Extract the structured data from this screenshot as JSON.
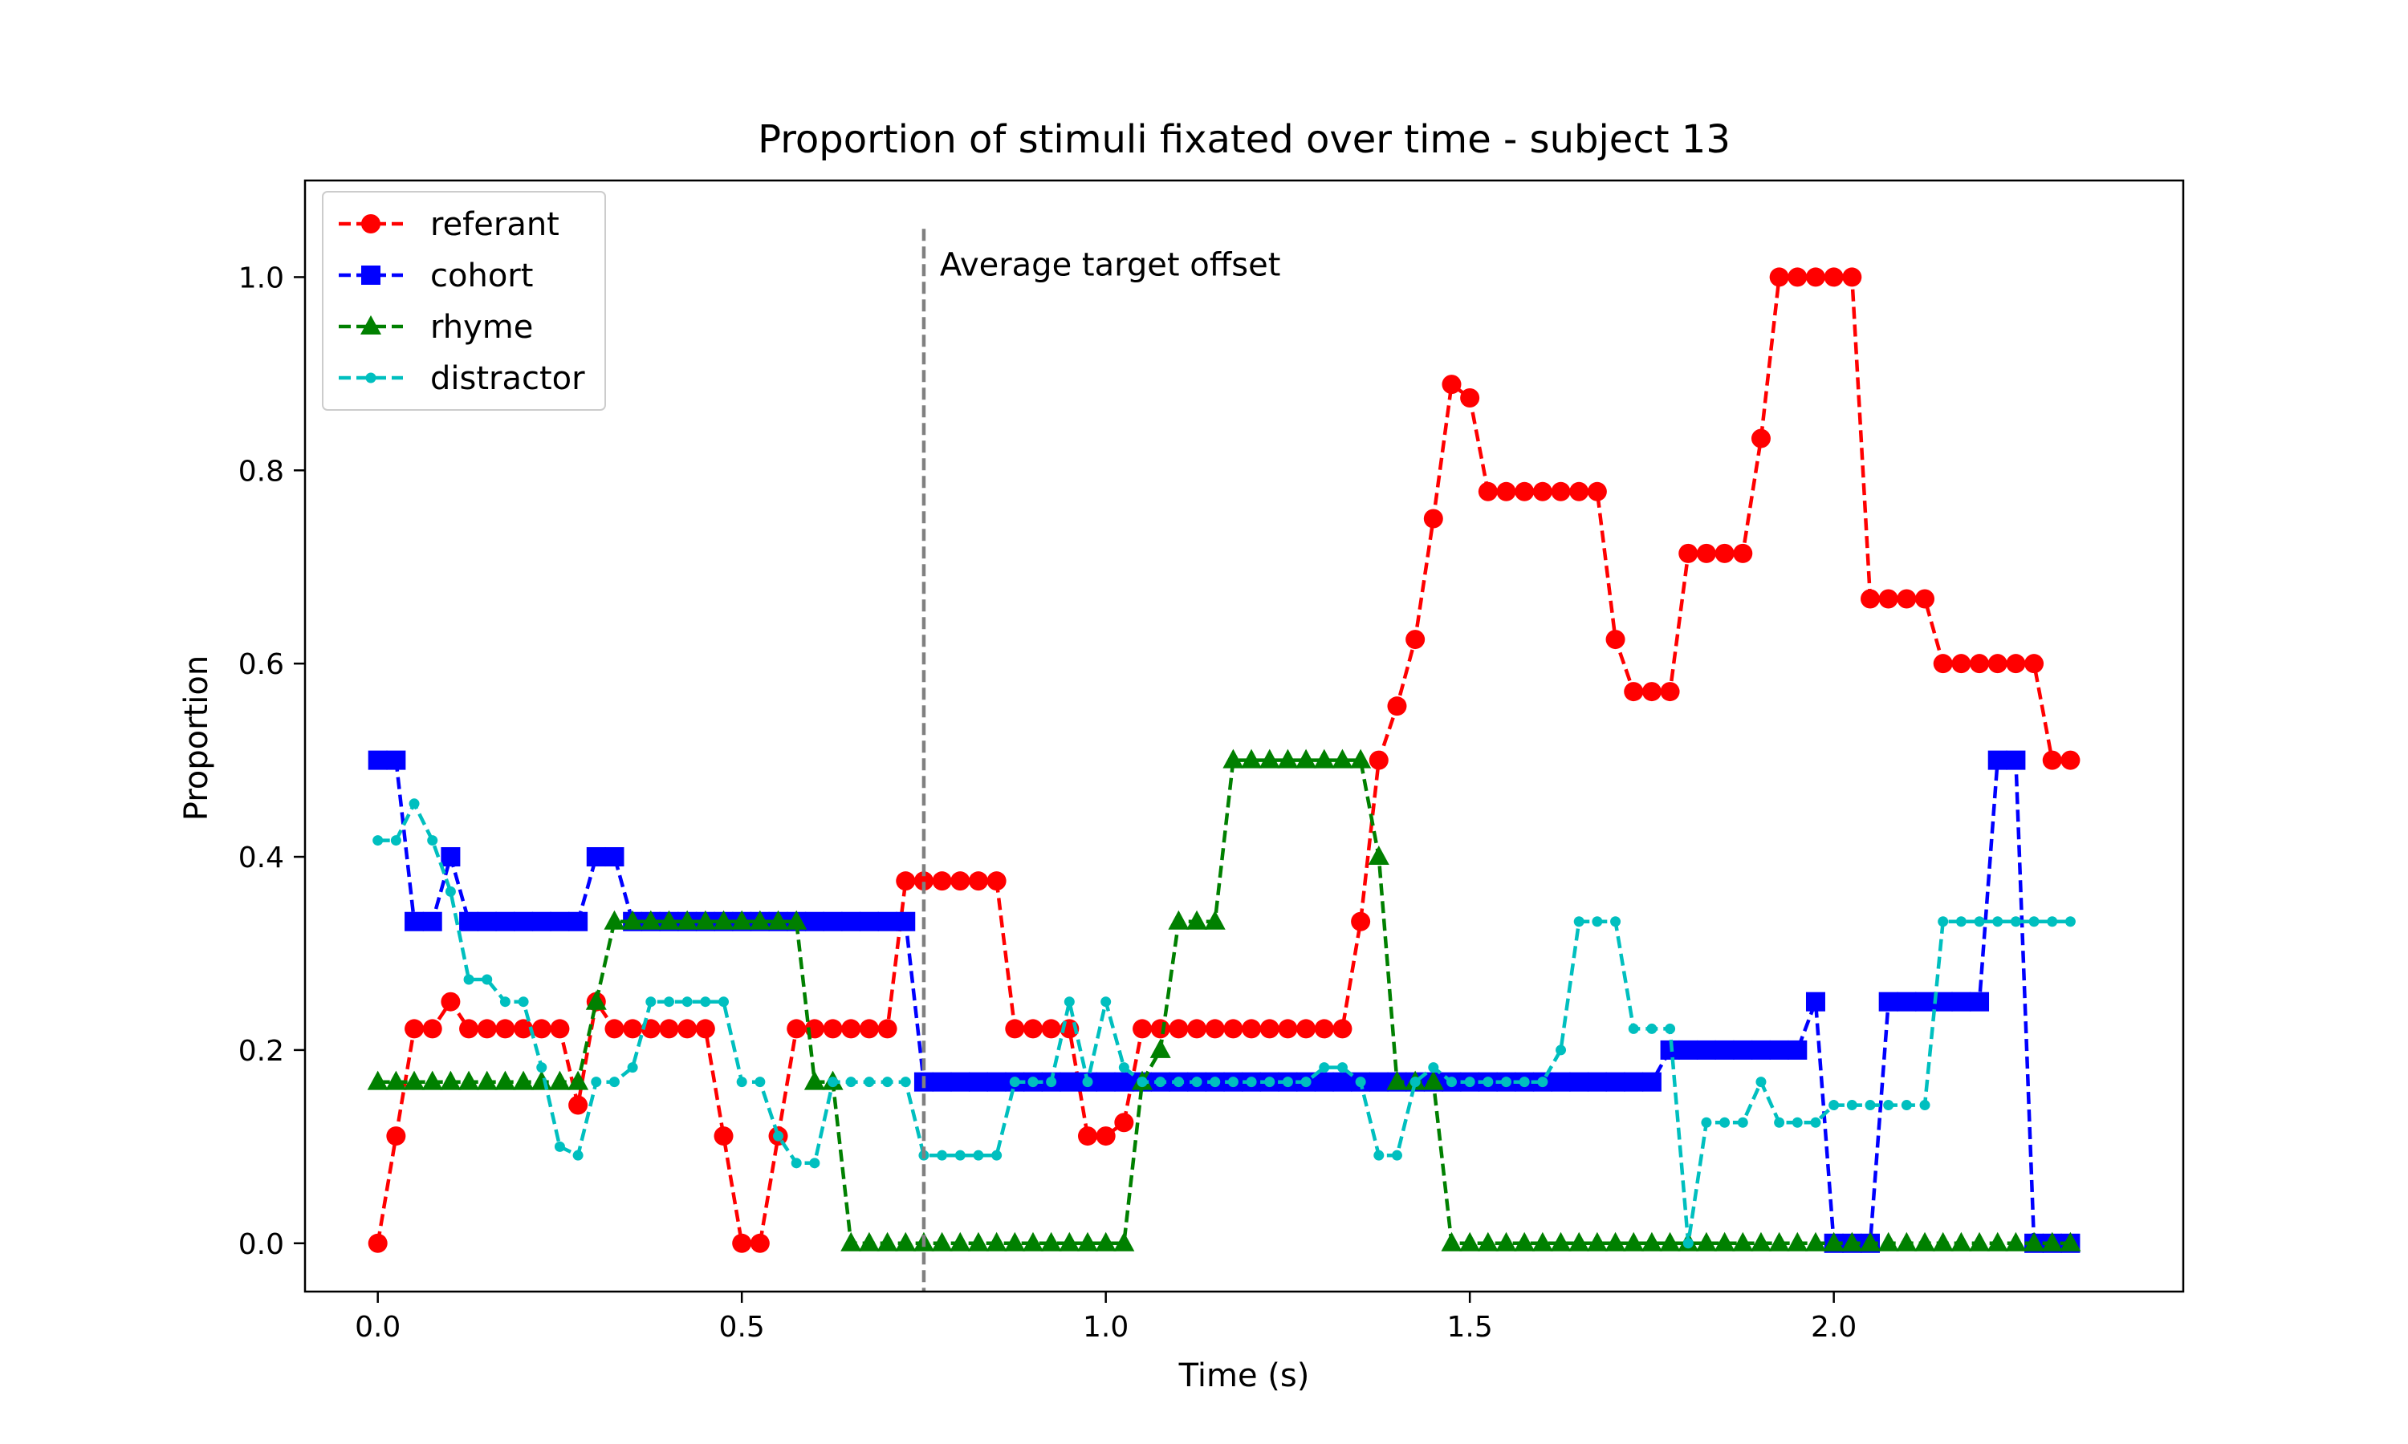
{
  "chart_data": {
    "type": "line",
    "title": "Proportion of stimuli fixated over time - subject 13",
    "xlabel": "Time (s)",
    "ylabel": "Proportion",
    "xlim": [
      -0.1,
      2.48
    ],
    "ylim": [
      -0.05,
      1.1
    ],
    "xticks": [
      0.0,
      0.5,
      1.0,
      1.5,
      2.0
    ],
    "xtick_labels": [
      "0.0",
      "0.5",
      "1.0",
      "1.5",
      "2.0"
    ],
    "yticks": [
      0.0,
      0.2,
      0.4,
      0.6,
      0.8,
      1.0
    ],
    "ytick_labels": [
      "0.0",
      "0.2",
      "0.4",
      "0.6",
      "0.8",
      "1.0"
    ],
    "grid": false,
    "legend_position": "top-left",
    "vline": {
      "x": 0.75,
      "ymax": 1.05,
      "color": "#808080",
      "label": "Average target offset"
    },
    "x_start": 0.0,
    "x_step": 0.025,
    "series": [
      {
        "name": "referant",
        "color": "#ff0000",
        "marker": "circle",
        "values": [
          0.0,
          0.111,
          0.222,
          0.222,
          0.25,
          0.222,
          0.222,
          0.222,
          0.222,
          0.222,
          0.222,
          0.143,
          0.25,
          0.222,
          0.222,
          0.222,
          0.222,
          0.222,
          0.222,
          0.111,
          0.0,
          0.0,
          0.111,
          0.222,
          0.222,
          0.222,
          0.222,
          0.222,
          0.222,
          0.375,
          0.375,
          0.375,
          0.375,
          0.375,
          0.375,
          0.222,
          0.222,
          0.222,
          0.222,
          0.111,
          0.111,
          0.125,
          0.222,
          0.222,
          0.222,
          0.222,
          0.222,
          0.222,
          0.222,
          0.222,
          0.222,
          0.222,
          0.222,
          0.222,
          0.333,
          0.5,
          0.556,
          0.625,
          0.75,
          0.889,
          0.875,
          0.778,
          0.778,
          0.778,
          0.778,
          0.778,
          0.778,
          0.778,
          0.625,
          0.571,
          0.571,
          0.571,
          0.714,
          0.714,
          0.714,
          0.714,
          0.833,
          1.0,
          1.0,
          1.0,
          1.0,
          1.0,
          0.667,
          0.667,
          0.667,
          0.667,
          0.6,
          0.6,
          0.6,
          0.6,
          0.6,
          0.6,
          0.5,
          0.5
        ]
      },
      {
        "name": "cohort",
        "color": "#0000ff",
        "marker": "square",
        "values": [
          0.5,
          0.5,
          0.333,
          0.333,
          0.4,
          0.333,
          0.333,
          0.333,
          0.333,
          0.333,
          0.333,
          0.333,
          0.4,
          0.4,
          0.333,
          0.333,
          0.333,
          0.333,
          0.333,
          0.333,
          0.333,
          0.333,
          0.333,
          0.333,
          0.333,
          0.333,
          0.333,
          0.333,
          0.333,
          0.333,
          0.167,
          0.167,
          0.167,
          0.167,
          0.167,
          0.167,
          0.167,
          0.167,
          0.167,
          0.167,
          0.167,
          0.167,
          0.167,
          0.167,
          0.167,
          0.167,
          0.167,
          0.167,
          0.167,
          0.167,
          0.167,
          0.167,
          0.167,
          0.167,
          0.167,
          0.167,
          0.167,
          0.167,
          0.167,
          0.167,
          0.167,
          0.167,
          0.167,
          0.167,
          0.167,
          0.167,
          0.167,
          0.167,
          0.167,
          0.167,
          0.167,
          0.2,
          0.2,
          0.2,
          0.2,
          0.2,
          0.2,
          0.2,
          0.2,
          0.25,
          0.0,
          0.0,
          0.0,
          0.25,
          0.25,
          0.25,
          0.25,
          0.25,
          0.25,
          0.5,
          0.5,
          0.0,
          0.0,
          0.0
        ]
      },
      {
        "name": "rhyme",
        "color": "#008000",
        "marker": "triangle",
        "values": [
          0.167,
          0.167,
          0.167,
          0.167,
          0.167,
          0.167,
          0.167,
          0.167,
          0.167,
          0.167,
          0.167,
          0.167,
          0.25,
          0.333,
          0.333,
          0.333,
          0.333,
          0.333,
          0.333,
          0.333,
          0.333,
          0.333,
          0.333,
          0.333,
          0.167,
          0.167,
          0.0,
          0.0,
          0.0,
          0.0,
          0.0,
          0.0,
          0.0,
          0.0,
          0.0,
          0.0,
          0.0,
          0.0,
          0.0,
          0.0,
          0.0,
          0.0,
          0.167,
          0.2,
          0.333,
          0.333,
          0.333,
          0.5,
          0.5,
          0.5,
          0.5,
          0.5,
          0.5,
          0.5,
          0.5,
          0.4,
          0.167,
          0.167,
          0.167,
          0.0,
          0.0,
          0.0,
          0.0,
          0.0,
          0.0,
          0.0,
          0.0,
          0.0,
          0.0,
          0.0,
          0.0,
          0.0,
          0.0,
          0.0,
          0.0,
          0.0,
          0.0,
          0.0,
          0.0,
          0.0,
          0.0,
          0.0,
          0.0,
          0.0,
          0.0,
          0.0,
          0.0,
          0.0,
          0.0,
          0.0,
          0.0,
          0.0,
          0.0,
          0.0
        ]
      },
      {
        "name": "distractor",
        "color": "#00bfbf",
        "marker": "dot",
        "values": [
          0.417,
          0.417,
          0.455,
          0.417,
          0.364,
          0.273,
          0.273,
          0.25,
          0.25,
          0.182,
          0.1,
          0.091,
          0.167,
          0.167,
          0.182,
          0.25,
          0.25,
          0.25,
          0.25,
          0.25,
          0.167,
          0.167,
          0.111,
          0.083,
          0.083,
          0.167,
          0.167,
          0.167,
          0.167,
          0.167,
          0.091,
          0.091,
          0.091,
          0.091,
          0.091,
          0.167,
          0.167,
          0.167,
          0.25,
          0.167,
          0.25,
          0.182,
          0.167,
          0.167,
          0.167,
          0.167,
          0.167,
          0.167,
          0.167,
          0.167,
          0.167,
          0.167,
          0.182,
          0.182,
          0.167,
          0.091,
          0.091,
          0.167,
          0.182,
          0.167,
          0.167,
          0.167,
          0.167,
          0.167,
          0.167,
          0.2,
          0.333,
          0.333,
          0.333,
          0.222,
          0.222,
          0.222,
          0.0,
          0.125,
          0.125,
          0.125,
          0.167,
          0.125,
          0.125,
          0.125,
          0.143,
          0.143,
          0.143,
          0.143,
          0.143,
          0.143,
          0.333,
          0.333,
          0.333,
          0.333,
          0.333,
          0.333,
          0.333,
          0.333
        ]
      }
    ]
  }
}
